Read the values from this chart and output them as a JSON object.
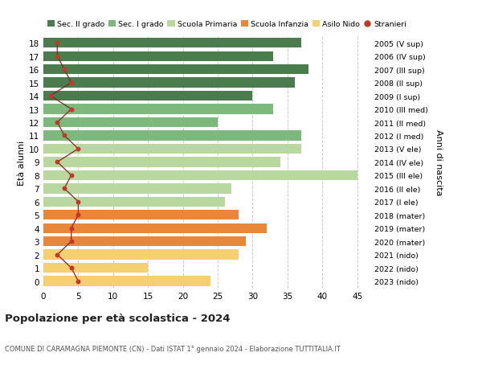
{
  "ages": [
    18,
    17,
    16,
    15,
    14,
    13,
    12,
    11,
    10,
    9,
    8,
    7,
    6,
    5,
    4,
    3,
    2,
    1,
    0
  ],
  "bar_values": [
    37,
    33,
    38,
    36,
    30,
    33,
    25,
    37,
    37,
    34,
    45,
    27,
    26,
    28,
    32,
    29,
    28,
    15,
    24
  ],
  "bar_colors": [
    "#4a7c4e",
    "#4a7c4e",
    "#4a7c4e",
    "#4a7c4e",
    "#4a7c4e",
    "#7db87d",
    "#7db87d",
    "#7db87d",
    "#b8d8a0",
    "#b8d8a0",
    "#b8d8a0",
    "#b8d8a0",
    "#b8d8a0",
    "#e8873a",
    "#e8873a",
    "#e8873a",
    "#f5d070",
    "#f5d070",
    "#f5d070"
  ],
  "stranieri_values": [
    2,
    2,
    3,
    4,
    1,
    4,
    2,
    3,
    5,
    2,
    4,
    3,
    5,
    5,
    4,
    4,
    2,
    4,
    5
  ],
  "right_labels": [
    "2005 (V sup)",
    "2006 (IV sup)",
    "2007 (III sup)",
    "2008 (II sup)",
    "2009 (I sup)",
    "2010 (III med)",
    "2011 (II med)",
    "2012 (I med)",
    "2013 (V ele)",
    "2014 (IV ele)",
    "2015 (III ele)",
    "2016 (II ele)",
    "2017 (I ele)",
    "2018 (mater)",
    "2019 (mater)",
    "2020 (mater)",
    "2021 (nido)",
    "2022 (nido)",
    "2023 (nido)"
  ],
  "legend_labels": [
    "Sec. II grado",
    "Sec. I grado",
    "Scuola Primaria",
    "Scuola Infanzia",
    "Asilo Nido",
    "Stranieri"
  ],
  "legend_colors": [
    "#4a7c4e",
    "#7db87d",
    "#b8d8a0",
    "#e8873a",
    "#f5d070",
    "#c0392b"
  ],
  "ylabel": "Età alunni",
  "right_ylabel": "Anni di nascita",
  "title": "Popolazione per età scolastica - 2024",
  "subtitle": "COMUNE DI CARAMAGNA PIEMONTE (CN) - Dati ISTAT 1° gennaio 2024 - Elaborazione TUTTITALIA.IT",
  "xlim": [
    0,
    47
  ],
  "xticks": [
    0,
    5,
    10,
    15,
    20,
    25,
    30,
    35,
    40,
    45
  ],
  "bg_color": "#ffffff",
  "plot_bg_color": "#ffffff",
  "grid_color": "#cccccc",
  "stranieri_color": "#c0392b",
  "stranieri_line_color": "#8b2020",
  "bar_height": 0.75
}
